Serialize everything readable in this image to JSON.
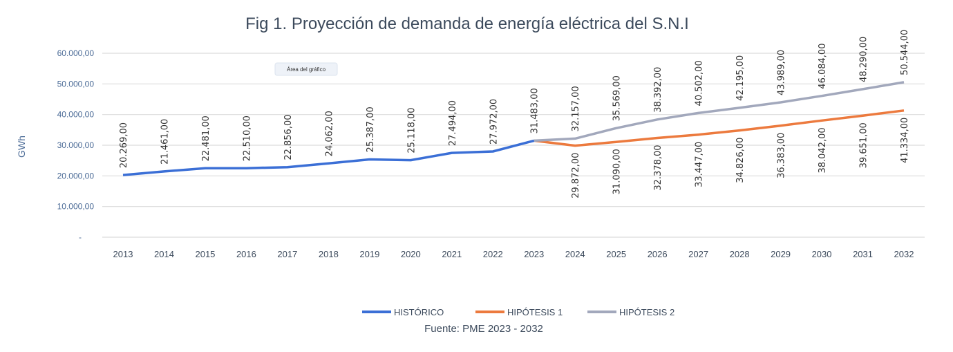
{
  "chart_data": {
    "type": "line",
    "title": "Fig 1.  Proyección de demanda de energía eléctrica del S.N.I",
    "xlabel": "",
    "ylabel": "GWh",
    "ylim": [
      0,
      60000
    ],
    "y_ticks": [
      0,
      10000,
      20000,
      30000,
      40000,
      50000,
      60000
    ],
    "y_tick_labels": [
      "-",
      "10.000,00",
      "20.000,00",
      "30.000,00",
      "40.000,00",
      "50.000,00",
      "60.000,00"
    ],
    "grid": true,
    "legend_position": "bottom",
    "categories": [
      "2013",
      "2014",
      "2015",
      "2016",
      "2017",
      "2018",
      "2019",
      "2020",
      "2021",
      "2022",
      "2023",
      "2024",
      "2025",
      "2026",
      "2027",
      "2028",
      "2029",
      "2030",
      "2031",
      "2032"
    ],
    "series": [
      {
        "name": "HISTÓRICO",
        "color": "#3b6fd6",
        "label_side": "above",
        "values": [
          20269,
          21461,
          22481,
          22510,
          22856,
          24062,
          25387,
          25118,
          27494,
          27972,
          31483,
          null,
          null,
          null,
          null,
          null,
          null,
          null,
          null,
          null
        ],
        "labels": [
          "20.269,00",
          "21.461,00",
          "22.481,00",
          "22.510,00",
          "22.856,00",
          "24.062,00",
          "25.387,00",
          "25.118,00",
          "27.494,00",
          "27.972,00",
          "31.483,00",
          null,
          null,
          null,
          null,
          null,
          null,
          null,
          null,
          null
        ]
      },
      {
        "name": "HIPÓTESIS 1",
        "color": "#ec7a3e",
        "label_side": "below",
        "values": [
          null,
          null,
          null,
          null,
          null,
          null,
          null,
          null,
          null,
          null,
          31483,
          29872,
          31090,
          32378,
          33447,
          34826,
          36383,
          38042,
          39651,
          41334
        ],
        "labels": [
          null,
          null,
          null,
          null,
          null,
          null,
          null,
          null,
          null,
          null,
          null,
          "29.872,00",
          "31.090,00",
          "32.378,00",
          "33.447,00",
          "34.826,00",
          "36.383,00",
          "38.042,00",
          "39.651,00",
          "41.334,00"
        ]
      },
      {
        "name": "HIPÓTESIS 2",
        "color": "#a2a8bc",
        "label_side": "above",
        "values": [
          null,
          null,
          null,
          null,
          null,
          null,
          null,
          null,
          null,
          null,
          31483,
          32157,
          35569,
          38392,
          40502,
          42195,
          43989,
          46084,
          48290,
          50544
        ],
        "labels": [
          null,
          null,
          null,
          null,
          null,
          null,
          null,
          null,
          null,
          null,
          null,
          "32.157,00",
          "35.569,00",
          "38.392,00",
          "40.502,00",
          "42.195,00",
          "43.989,00",
          "46.084,00",
          "48.290,00",
          "50.544,00"
        ]
      }
    ],
    "source": "Fuente: PME 2023 - 2032",
    "tooltip": "Área del gráfico"
  }
}
